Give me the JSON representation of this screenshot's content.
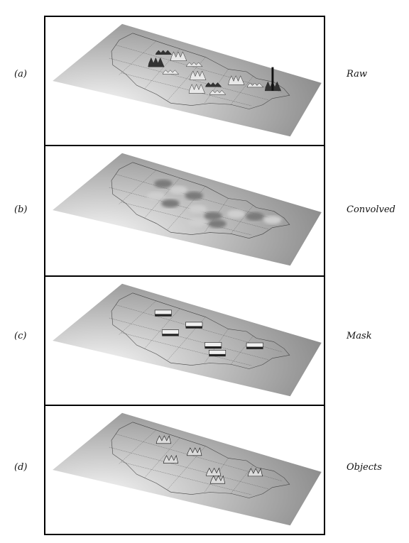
{
  "panels": [
    {
      "id": "a",
      "tag": "(a)",
      "name": "Raw",
      "style": "raw"
    },
    {
      "id": "b",
      "tag": "(b)",
      "name": "Convolved",
      "style": "convolved"
    },
    {
      "id": "c",
      "tag": "(c)",
      "name": "Mask",
      "style": "mask"
    },
    {
      "id": "d",
      "tag": "(d)",
      "name": "Objects",
      "style": "objects"
    }
  ],
  "colors": {
    "plane_light": "#f4f4f4",
    "plane_dark": "#8c8c8c",
    "frame": "#000000",
    "relief": "#333333"
  }
}
